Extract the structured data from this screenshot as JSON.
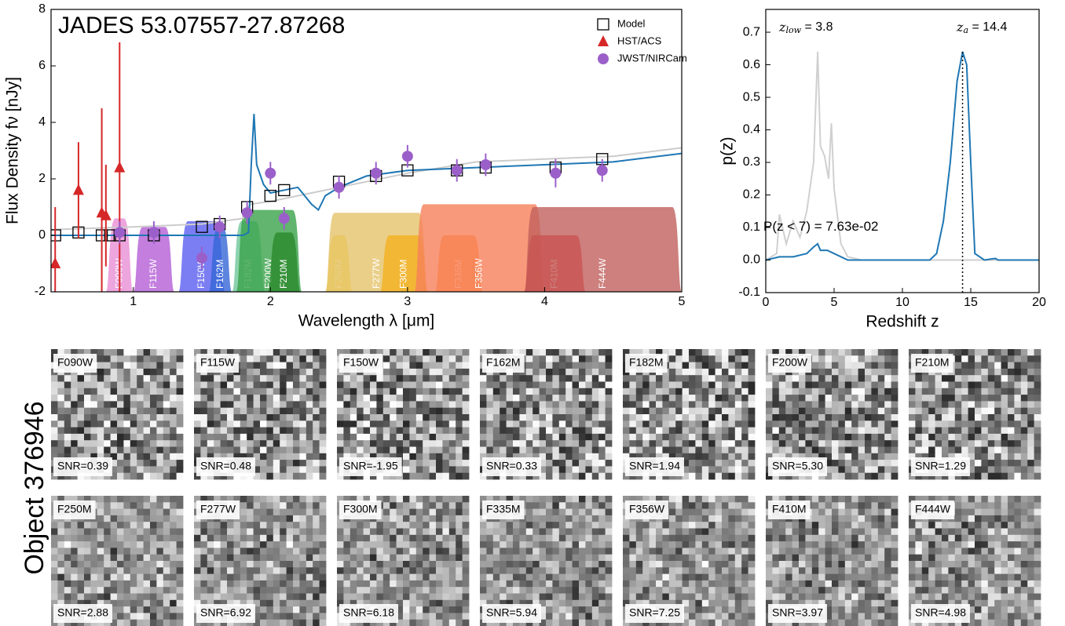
{
  "chart_data": [
    {
      "type": "scatter",
      "title": "JADES 53.07557-27.87268",
      "xlabel": "Wavelength λ [μm]",
      "ylabel": "Flux Density fν [nJy]",
      "xlim": [
        0.4,
        5
      ],
      "ylim": [
        -2,
        8
      ],
      "xticks": [
        1,
        2,
        3,
        4,
        5
      ],
      "yticks": [
        -2,
        0,
        2,
        4,
        6,
        8
      ],
      "legend": "upper right",
      "series": [
        {
          "name": "Model",
          "kind": "square",
          "color": "#000000",
          "x": [
            0.43,
            0.6,
            0.77,
            0.83,
            0.9,
            1.15,
            1.5,
            1.63,
            1.83,
            2.0,
            2.1,
            2.5,
            2.77,
            3.0,
            3.36,
            3.57,
            4.08,
            4.42
          ],
          "values": [
            0,
            0.1,
            0,
            0,
            0,
            0,
            0.3,
            0.4,
            1.0,
            1.4,
            1.6,
            1.9,
            2.1,
            2.3,
            2.3,
            2.4,
            2.4,
            2.7
          ]
        },
        {
          "name": "HST/ACS",
          "kind": "triangle",
          "color": "#d62728",
          "x": [
            0.43,
            0.6,
            0.77,
            0.8,
            0.9
          ],
          "values": [
            -1.0,
            1.6,
            0.8,
            0.7,
            2.4
          ],
          "errors": [
            2.0,
            1.7,
            3.7,
            1.8,
            4.8
          ]
        },
        {
          "name": "JWST/NIRCam",
          "kind": "circle",
          "color": "#9b5fc9",
          "x": [
            0.9,
            1.15,
            1.5,
            1.63,
            1.83,
            2.0,
            2.1,
            2.5,
            2.77,
            3.0,
            3.36,
            3.57,
            4.08,
            4.42
          ],
          "values": [
            0.1,
            0.1,
            -0.8,
            0.3,
            0.8,
            2.2,
            0.6,
            1.7,
            2.2,
            2.8,
            2.3,
            2.5,
            2.2,
            2.3
          ],
          "errors": [
            0.4,
            0.4,
            0.4,
            0.4,
            0.4,
            0.4,
            0.4,
            0.4,
            0.4,
            0.4,
            0.4,
            0.4,
            0.5,
            0.4
          ]
        }
      ],
      "lines": [
        {
          "color": "#cccccc",
          "x": [
            0.4,
            1.0,
            1.5,
            1.8,
            1.85,
            2.0,
            2.3,
            2.5,
            3.0,
            3.5,
            4.0,
            4.5,
            5.0
          ],
          "values": [
            0.2,
            0.3,
            0.4,
            0.6,
            1.1,
            1.2,
            1.5,
            1.7,
            2.2,
            2.6,
            2.7,
            2.8,
            3.1
          ]
        },
        {
          "color": "#1f77b4",
          "x": [
            0.4,
            1.8,
            1.84,
            1.86,
            1.88,
            1.9,
            1.95,
            2.0,
            2.2,
            2.3,
            2.35,
            2.4,
            2.5,
            2.7,
            3.0,
            3.5,
            4.0,
            4.5,
            5.0
          ],
          "values": [
            0,
            0,
            0.1,
            2.5,
            4.3,
            2.5,
            1.8,
            1.5,
            1.7,
            1.1,
            0.9,
            1.4,
            1.7,
            2.1,
            2.3,
            2.4,
            2.5,
            2.6,
            2.9
          ]
        }
      ],
      "filters": [
        {
          "name": "F090W",
          "lo": 0.8,
          "hi": 1.0,
          "peak": 0.6,
          "color": "#e98fd6"
        },
        {
          "name": "F115W",
          "lo": 1.0,
          "hi": 1.3,
          "peak": 0.3,
          "color": "#b45ed6"
        },
        {
          "name": "F150W",
          "lo": 1.33,
          "hi": 1.67,
          "peak": 0.5,
          "color": "#5a5ef0"
        },
        {
          "name": "F162M",
          "lo": 1.55,
          "hi": 1.72,
          "peak": 0.3,
          "color": "#3566d6"
        },
        {
          "name": "F182M",
          "lo": 1.72,
          "hi": 1.96,
          "peak": 0.5,
          "color": "#6fc79a"
        },
        {
          "name": "F200W",
          "lo": 1.75,
          "hi": 2.23,
          "peak": 0.9,
          "color": "#3aa24a"
        },
        {
          "name": "F210M",
          "lo": 1.98,
          "hi": 2.22,
          "peak": 0.1,
          "color": "#2c8a2c"
        },
        {
          "name": "F250M",
          "lo": 2.4,
          "hi": 2.6,
          "peak": 0.0,
          "color": "#f2d13a"
        },
        {
          "name": "F277W",
          "lo": 2.4,
          "hi": 3.15,
          "peak": 0.8,
          "color": "#e5c36a"
        },
        {
          "name": "F300M",
          "lo": 2.8,
          "hi": 3.15,
          "peak": 0.0,
          "color": "#f2b020"
        },
        {
          "name": "F335M",
          "lo": 3.2,
          "hi": 3.55,
          "peak": 0.0,
          "color": "#f98c2a"
        },
        {
          "name": "F356W",
          "lo": 3.05,
          "hi": 4.0,
          "peak": 1.1,
          "color": "#f77f5a"
        },
        {
          "name": "F410M",
          "lo": 3.85,
          "hi": 4.3,
          "peak": 0.0,
          "color": "#e8242a"
        },
        {
          "name": "F444W",
          "lo": 3.85,
          "hi": 5.0,
          "peak": 1.0,
          "color": "#c0605c"
        }
      ]
    },
    {
      "type": "line",
      "xlabel": "Redshift z",
      "ylabel": "p(z)",
      "xlim": [
        0,
        20
      ],
      "ylim": [
        -0.1,
        0.77
      ],
      "xticks": [
        0,
        5,
        10,
        15,
        20
      ],
      "yticks": [
        -0.1,
        {
          "value": 0,
          "label": "0.0"
        },
        0.1,
        0.2,
        0.3,
        0.4,
        0.5,
        0.6,
        0.7
      ],
      "series": [
        {
          "color": "#d0d0d0",
          "x": [
            0,
            0.8,
            1,
            1.5,
            2,
            2.5,
            3,
            3.5,
            3.8,
            4,
            4.3,
            4.6,
            4.8,
            5,
            5.5,
            6,
            7,
            20
          ],
          "values": [
            0,
            0.02,
            0.14,
            0.05,
            0.12,
            0.07,
            0.15,
            0.3,
            0.64,
            0.35,
            0.32,
            0.25,
            0.42,
            0.22,
            0.05,
            0.01,
            0,
            0
          ]
        },
        {
          "color": "#1f77b4",
          "x": [
            0,
            1,
            2,
            3,
            3.5,
            3.8,
            4,
            4.5,
            5,
            6,
            10,
            12,
            12.5,
            13,
            13.5,
            14,
            14.4,
            14.7,
            15,
            15.3,
            16,
            16.8,
            17,
            20
          ],
          "values": [
            0,
            0.01,
            0.01,
            0.02,
            0.04,
            0.05,
            0.03,
            0.03,
            0.02,
            0,
            0,
            0,
            0.02,
            0.12,
            0.3,
            0.55,
            0.64,
            0.6,
            0.3,
            0.02,
            0,
            0.005,
            0,
            0
          ]
        }
      ],
      "vlines": [
        {
          "x": 14.4
        }
      ],
      "annotations": [
        {
          "symbol": "z",
          "sub": "low",
          "text": " = 3.8"
        },
        {
          "symbol": "z",
          "sub": "a",
          "text": " = 14.4"
        },
        {
          "text": "P(z < 7) = 7.63e-02"
        }
      ]
    }
  ],
  "stamps": {
    "label": "Object 376946",
    "rows": [
      [
        {
          "filter": "F090W",
          "snr": "SNR=0.39"
        },
        {
          "filter": "F115W",
          "snr": "SNR=0.48"
        },
        {
          "filter": "F150W",
          "snr": "SNR=-1.95"
        },
        {
          "filter": "F162M",
          "snr": "SNR=0.33"
        },
        {
          "filter": "F182M",
          "snr": "SNR=1.94"
        },
        {
          "filter": "F200W",
          "snr": "SNR=5.30"
        },
        {
          "filter": "F210M",
          "snr": "SNR=1.29"
        }
      ],
      [
        {
          "filter": "F250M",
          "snr": "SNR=2.88"
        },
        {
          "filter": "F277W",
          "snr": "SNR=6.92"
        },
        {
          "filter": "F300M",
          "snr": "SNR=6.18"
        },
        {
          "filter": "F335M",
          "snr": "SNR=5.94"
        },
        {
          "filter": "F356W",
          "snr": "SNR=7.25"
        },
        {
          "filter": "F410M",
          "snr": "SNR=3.97"
        },
        {
          "filter": "F444W",
          "snr": "SNR=4.98"
        }
      ]
    ]
  }
}
